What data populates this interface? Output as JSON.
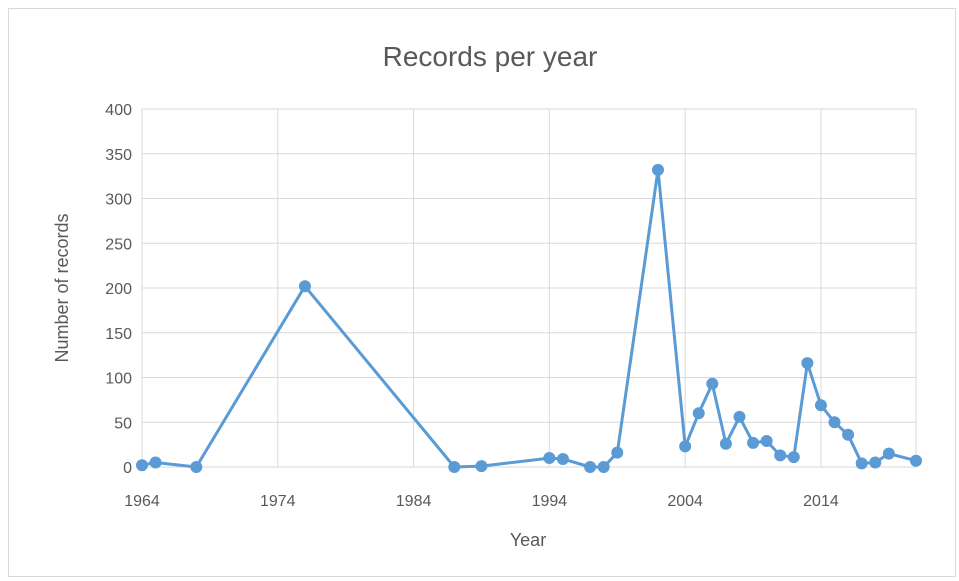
{
  "chart_data": {
    "type": "line",
    "title": "Records per year",
    "xlabel": "Year",
    "ylabel": "Number of records",
    "xlim": [
      1964,
      2021
    ],
    "ylim": [
      0,
      400
    ],
    "x_ticks": [
      "1964",
      "1974",
      "1984",
      "1994",
      "2004",
      "2014"
    ],
    "y_ticks": [
      "0",
      "50",
      "100",
      "150",
      "200",
      "250",
      "300",
      "350",
      "400"
    ],
    "grid": true,
    "legend": "none",
    "series_color": "#5b9bd5",
    "series": [
      {
        "x": [
          1964,
          1965,
          1968,
          1976,
          1987,
          1989,
          1994,
          1995,
          1997,
          1998,
          1999,
          2002,
          2004,
          2005,
          2006,
          2007,
          2008,
          2009,
          2010,
          2011,
          2012,
          2013,
          2014,
          2015,
          2016,
          2017,
          2018,
          2019,
          2021
        ],
        "values": [
          2,
          5,
          0,
          202,
          0,
          1,
          10,
          9,
          0,
          0,
          16,
          332,
          23,
          60,
          93,
          26,
          56,
          27,
          29,
          13,
          11,
          116,
          69,
          50,
          36,
          4,
          5,
          15,
          7
        ]
      }
    ]
  }
}
